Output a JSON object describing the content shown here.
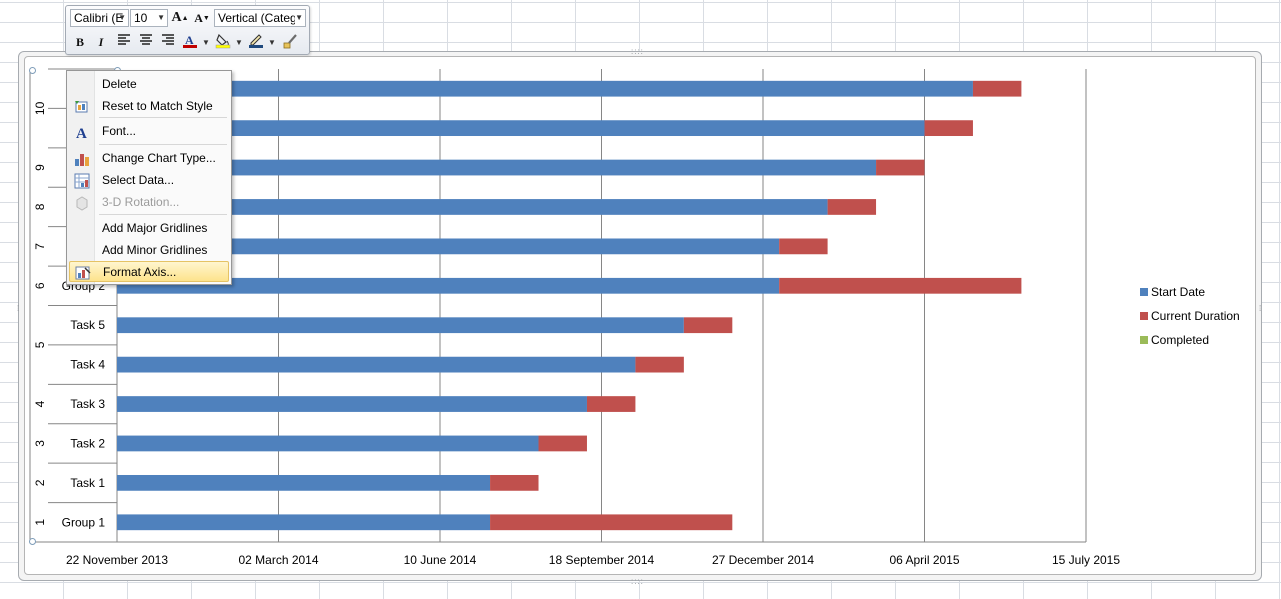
{
  "legend": [
    {
      "label": "Start Date",
      "color": "#4f81bd"
    },
    {
      "label": "Current Duration",
      "color": "#c0504d"
    },
    {
      "label": "Completed",
      "color": "#9bbb59"
    }
  ],
  "mini_toolbar": {
    "font_name": "Calibri (E",
    "font_size": "10",
    "element_selector": "Vertical (Catego",
    "grow_font_icon": "grow-font-icon",
    "shrink_font_icon": "shrink-font-icon",
    "bold_label": "B",
    "italic_label": "I",
    "font_color": "#c00000",
    "highlight_color": "#ffff00"
  },
  "context_menu": {
    "items": [
      {
        "label": "Delete",
        "icon": "",
        "disabled": false,
        "highlighted": false
      },
      {
        "label": "Reset to Match Style",
        "icon": "reset-style-icon",
        "disabled": false,
        "highlighted": false
      },
      {
        "label": "Font...",
        "icon": "font-icon",
        "disabled": false,
        "highlighted": false
      },
      {
        "label": "Change Chart Type...",
        "icon": "chart-type-icon",
        "disabled": false,
        "highlighted": false
      },
      {
        "label": "Select Data...",
        "icon": "select-data-icon",
        "disabled": false,
        "highlighted": false
      },
      {
        "label": "3-D Rotation...",
        "icon": "rotation-3d-icon",
        "disabled": true,
        "highlighted": false
      },
      {
        "label": "Add Major Gridlines",
        "icon": "",
        "disabled": false,
        "highlighted": false
      },
      {
        "label": "Add Minor Gridlines",
        "icon": "",
        "disabled": false,
        "highlighted": false
      },
      {
        "label": "Format Axis...",
        "icon": "format-axis-icon",
        "disabled": false,
        "highlighted": true
      }
    ]
  },
  "chart_data": {
    "type": "bar",
    "orientation": "horizontal",
    "stacked": true,
    "categories": [
      "Group 1",
      "Task 1",
      "Task 2",
      "Task 3",
      "Task 4",
      "Task 5",
      "Group 2",
      "",
      "",
      "",
      "",
      ""
    ],
    "outer_categories": [
      "1",
      "2",
      "3",
      "4",
      "5",
      "6",
      "7",
      "8",
      "9",
      "10"
    ],
    "series": [
      {
        "name": "Start Date",
        "color": "#4f81bd",
        "values": [
          "2014-07-11",
          "2014-07-11",
          "2014-08-10",
          "2014-09-09",
          "2014-10-09",
          "2014-11-08",
          "2015-01-06",
          "2015-01-06",
          "2015-02-05",
          "2015-03-07",
          "2015-04-06",
          "2015-05-06"
        ]
      },
      {
        "name": "Current Duration",
        "color": "#c0504d",
        "values": [
          150,
          30,
          30,
          30,
          30,
          30,
          150,
          30,
          30,
          30,
          30,
          30
        ]
      },
      {
        "name": "Completed",
        "color": "#9bbb59",
        "values": [
          0,
          0,
          0,
          0,
          0,
          0,
          0,
          0,
          0,
          0,
          0,
          0
        ]
      }
    ],
    "x_tick_labels": [
      "22 November 2013",
      "02 March 2014",
      "10 June 2014",
      "18 September 2014",
      "27 December 2014",
      "06 April 2015",
      "15 July 2015"
    ],
    "xlim": [
      "2013-11-22",
      "2015-07-15"
    ],
    "x_major_unit_days": 100,
    "grid": true,
    "legend_position": "right"
  }
}
